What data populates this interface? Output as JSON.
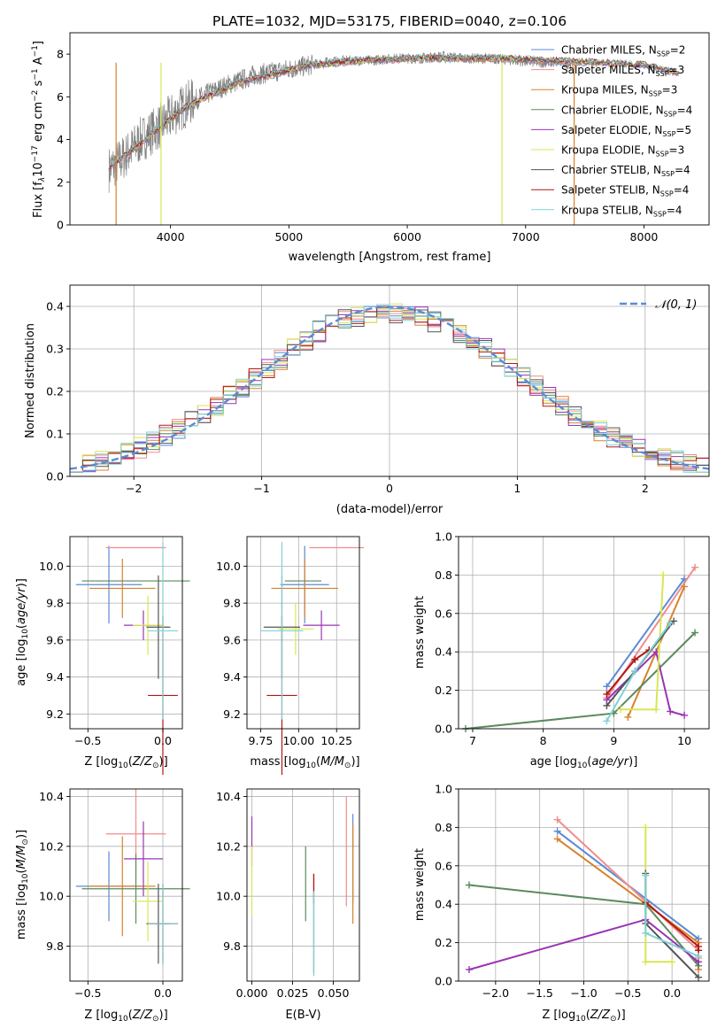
{
  "chart_data": [
    {
      "id": "spectrum",
      "type": "line",
      "title": "PLATE=1032, MJD=53175, FIBERID=0040, z=0.106",
      "xlabel": "wavelength [Angstrom, rest frame]",
      "ylabel": "Flux [fλ10⁻¹⁷ erg cm⁻² s⁻¹ A⁻¹]",
      "xlim": [
        3150,
        8550
      ],
      "ylim": [
        0,
        9
      ],
      "xticks": [
        4000,
        5000,
        6000,
        7000,
        8000
      ],
      "yticks": [
        0,
        2,
        4,
        6,
        8
      ],
      "legend_position": "upper right",
      "observed_color": "#808080",
      "observed_x": [
        3480,
        3550,
        3650,
        3750,
        3850,
        3950,
        4050,
        4150,
        4300,
        4500,
        4700,
        4900,
        5100,
        5300,
        5500,
        5700,
        5900,
        6100,
        6300,
        6500,
        6700,
        6900,
        7100,
        7300,
        7400
      ],
      "observed_y": [
        2.6,
        2.9,
        3.4,
        4.0,
        4.4,
        4.8,
        5.3,
        5.7,
        6.1,
        6.6,
        7.0,
        7.2,
        7.4,
        7.6,
        7.7,
        7.7,
        7.8,
        7.8,
        7.9,
        7.8,
        7.8,
        7.7,
        7.6,
        7.6,
        7.5
      ],
      "model_x": [
        3480,
        3700,
        3900,
        4100,
        4300,
        4600,
        4900,
        5200,
        5600,
        6000,
        6400,
        6800,
        7200,
        7600,
        8000,
        8300
      ],
      "model_y": [
        2.7,
        3.6,
        4.5,
        5.4,
        6.0,
        6.7,
        7.1,
        7.5,
        7.7,
        7.8,
        7.8,
        7.8,
        7.7,
        7.6,
        7.5,
        7.1
      ],
      "series": [
        {
          "name": "Chabrier MILES, N",
          "nssp": "2",
          "color": "#5b8bd6"
        },
        {
          "name": "Salpeter MILES, N",
          "nssp": "3",
          "color": "#f18c8c"
        },
        {
          "name": "Kroupa MILES, N",
          "nssp": "3",
          "color": "#d8822a"
        },
        {
          "name": "Chabrier ELODIE, N",
          "nssp": "4",
          "color": "#5a8a5e"
        },
        {
          "name": "Salpeter ELODIE, N",
          "nssp": "5",
          "color": "#9b33b4"
        },
        {
          "name": "Kroupa ELODIE, N",
          "nssp": "3",
          "color": "#d8e653"
        },
        {
          "name": "Chabrier STELIB, N",
          "nssp": "4",
          "color": "#555555"
        },
        {
          "name": "Salpeter STELIB, N",
          "nssp": "4",
          "color": "#b21818"
        },
        {
          "name": "Kroupa STELIB, N",
          "nssp": "4",
          "color": "#7fd2d6"
        }
      ],
      "nssp_subscript": "SSP"
    },
    {
      "id": "residuals",
      "type": "histogram",
      "xlabel": "(data-model)/error",
      "ylabel": "Normed distribution",
      "xlim": [
        -2.5,
        2.5
      ],
      "ylim": [
        0,
        0.45
      ],
      "xticks": [
        -2,
        -1,
        0,
        1,
        2
      ],
      "yticks": [
        0.0,
        0.1,
        0.2,
        0.3,
        0.4
      ],
      "legend": "𝒩(0, 1)",
      "legend_position": "upper right",
      "grid": true,
      "bin_width": 0.1,
      "hist_shape_x": [
        -2.5,
        -2.0,
        -1.5,
        -1.0,
        -0.5,
        0.0,
        0.5,
        1.0,
        1.5,
        2.0,
        2.5
      ],
      "hist_shape_y": [
        0.03,
        0.07,
        0.15,
        0.24,
        0.35,
        0.37,
        0.34,
        0.26,
        0.13,
        0.06,
        0.03
      ],
      "gaussian_mean": 0,
      "gaussian_sigma": 1
    },
    {
      "id": "z_vs_age",
      "type": "errorbar",
      "xlabel": "Z [log₁₀(Z/Z⊙)]",
      "ylabel": "age  [log₁₀(age/yr)]",
      "xlim": [
        -0.62,
        0.13
      ],
      "ylim": [
        9.12,
        10.16
      ],
      "xticks": [
        -0.5,
        0.0
      ],
      "yticks": [
        9.2,
        9.4,
        9.6,
        9.8,
        10.0
      ],
      "grid": true,
      "points": [
        {
          "series": 0,
          "x": -0.36,
          "y": 9.9,
          "xerr": 0.22,
          "yerr": 0.21
        },
        {
          "series": 1,
          "x": -0.18,
          "y": 10.1,
          "xerr": 0.2,
          "yerr": 0.0
        },
        {
          "series": 2,
          "x": -0.27,
          "y": 9.88,
          "xerr": 0.22,
          "yerr": 0.16
        },
        {
          "series": 3,
          "x": -0.18,
          "y": 9.92,
          "xerr": 0.36,
          "yerr": 0.0
        },
        {
          "series": 4,
          "x": -0.13,
          "y": 9.68,
          "xerr": 0.13,
          "yerr": 0.08
        },
        {
          "series": 5,
          "x": -0.1,
          "y": 9.68,
          "xerr": 0.1,
          "yerr": 0.16
        },
        {
          "series": 6,
          "x": -0.03,
          "y": 9.67,
          "xerr": 0.08,
          "yerr": 0.28
        },
        {
          "series": 7,
          "x": 0.0,
          "y": 9.3,
          "xerr": 0.1,
          "yerr": 0.43
        },
        {
          "series": 8,
          "x": 0.0,
          "y": 9.65,
          "xerr": 0.1,
          "yerr": 0.48
        }
      ]
    },
    {
      "id": "mass_vs_age",
      "type": "errorbar",
      "xlabel": "mass [log₁₀(M/M⊙)]",
      "xlim": [
        9.66,
        10.4
      ],
      "ylim": [
        9.12,
        10.16
      ],
      "xticks": [
        9.75,
        10.0,
        10.25
      ],
      "yticks": [
        9.2,
        9.4,
        9.6,
        9.8,
        10.0
      ],
      "grid": true,
      "points": [
        {
          "series": 0,
          "x": 10.04,
          "y": 9.9,
          "xerr": 0.16,
          "yerr": 0.21
        },
        {
          "series": 1,
          "x": 10.25,
          "y": 10.1,
          "xerr": 0.18,
          "yerr": 0.0
        },
        {
          "series": 2,
          "x": 10.04,
          "y": 9.88,
          "xerr": 0.22,
          "yerr": 0.16
        },
        {
          "series": 3,
          "x": 10.03,
          "y": 9.92,
          "xerr": 0.12,
          "yerr": 0.0
        },
        {
          "series": 4,
          "x": 10.15,
          "y": 9.68,
          "xerr": 0.12,
          "yerr": 0.08
        },
        {
          "series": 5,
          "x": 9.98,
          "y": 9.66,
          "xerr": 0.12,
          "yerr": 0.14
        },
        {
          "series": 6,
          "x": 9.89,
          "y": 9.67,
          "xerr": 0.12,
          "yerr": 0.28
        },
        {
          "series": 7,
          "x": 9.89,
          "y": 9.3,
          "xerr": 0.1,
          "yerr": 0.43
        },
        {
          "series": 8,
          "x": 9.89,
          "y": 9.65,
          "xerr": 0.14,
          "yerr": 0.48
        }
      ]
    },
    {
      "id": "age_vs_weight",
      "type": "line",
      "xlabel": "age  [log₁₀(age/yr)]",
      "ylabel": "mass weight",
      "xlim": [
        6.8,
        10.35
      ],
      "ylim": [
        0,
        1
      ],
      "xticks": [
        7,
        8,
        9,
        10
      ],
      "yticks": [
        0.0,
        0.2,
        0.4,
        0.6,
        0.8,
        1.0
      ],
      "grid": true,
      "series": [
        {
          "series": 0,
          "x": [
            8.9,
            10.0
          ],
          "y": [
            0.22,
            0.78
          ]
        },
        {
          "series": 1,
          "x": [
            8.9,
            10.15
          ],
          "y": [
            0.16,
            0.84
          ]
        },
        {
          "series": 2,
          "x": [
            9.2,
            10.0
          ],
          "y": [
            0.06,
            0.74
          ]
        },
        {
          "series": 3,
          "x": [
            6.9,
            9.0,
            10.15
          ],
          "y": [
            0.0,
            0.08,
            0.5
          ]
        },
        {
          "series": 4,
          "x": [
            8.9,
            9.6,
            9.8,
            10.0
          ],
          "y": [
            0.15,
            0.4,
            0.09,
            0.07
          ]
        },
        {
          "series": 5,
          "x": [
            9.1,
            9.6,
            9.7
          ],
          "y": [
            0.1,
            0.1,
            0.8
          ]
        },
        {
          "series": 6,
          "x": [
            8.9,
            9.3,
            9.85
          ],
          "y": [
            0.12,
            0.3,
            0.56
          ]
        },
        {
          "series": 7,
          "x": [
            8.9,
            9.3,
            9.5
          ],
          "y": [
            0.18,
            0.36,
            0.41
          ]
        },
        {
          "series": 8,
          "x": [
            8.9,
            9.3,
            9.8
          ],
          "y": [
            0.04,
            0.3,
            0.55
          ]
        }
      ]
    },
    {
      "id": "z_vs_mass",
      "type": "errorbar",
      "xlabel": "Z [log₁₀(Z/Z⊙)]",
      "ylabel": "mass [log₁₀(M/M⊙)]",
      "xlim": [
        -0.62,
        0.13
      ],
      "ylim": [
        9.66,
        10.43
      ],
      "xticks": [
        -0.5,
        0.0
      ],
      "yticks": [
        9.8,
        10.0,
        10.2,
        10.4
      ],
      "grid": true,
      "points": [
        {
          "series": 0,
          "x": -0.36,
          "y": 10.04,
          "xerr": 0.22,
          "yerr": 0.14
        },
        {
          "series": 1,
          "x": -0.18,
          "y": 10.25,
          "xerr": 0.2,
          "yerr": 0.18
        },
        {
          "series": 2,
          "x": -0.27,
          "y": 10.04,
          "xerr": 0.22,
          "yerr": 0.2
        },
        {
          "series": 3,
          "x": -0.18,
          "y": 10.03,
          "xerr": 0.36,
          "yerr": 0.14
        },
        {
          "series": 4,
          "x": -0.13,
          "y": 10.15,
          "xerr": 0.13,
          "yerr": 0.15
        },
        {
          "series": 5,
          "x": -0.1,
          "y": 9.98,
          "xerr": 0.1,
          "yerr": 0.16
        },
        {
          "series": 6,
          "x": -0.03,
          "y": 9.89,
          "xerr": 0.08,
          "yerr": 0.16
        },
        {
          "series": 7,
          "x": 0.0,
          "y": 9.89,
          "xerr": 0.1,
          "yerr": 0.16
        },
        {
          "series": 8,
          "x": 0.0,
          "y": 9.89,
          "xerr": 0.1,
          "yerr": 0.16
        }
      ]
    },
    {
      "id": "ebv_vs_mass",
      "type": "errorbar",
      "xlabel": "E(B-V)",
      "xlim": [
        -0.003,
        0.066
      ],
      "ylim": [
        9.66,
        10.43
      ],
      "xticks": [
        0.0,
        0.025,
        0.05
      ],
      "xticklabels": [
        "0.000",
        "0.025",
        "0.050"
      ],
      "yticks": [
        9.8,
        10.0,
        10.2,
        10.4
      ],
      "grid": true,
      "points": [
        {
          "series": 0,
          "x": 0.062,
          "y": 10.15,
          "xerr": 0,
          "yerr": 0.18
        },
        {
          "series": 1,
          "x": 0.058,
          "y": 10.18,
          "xerr": 0,
          "yerr": 0.22
        },
        {
          "series": 2,
          "x": 0.062,
          "y": 10.09,
          "xerr": 0,
          "yerr": 0.2
        },
        {
          "series": 3,
          "x": 0.033,
          "y": 10.05,
          "xerr": 0,
          "yerr": 0.15
        },
        {
          "series": 4,
          "x": 0.0,
          "y": 10.22,
          "xerr": 0,
          "yerr": 0.1
        },
        {
          "series": 5,
          "x": 0.0,
          "y": 10.06,
          "xerr": 0,
          "yerr": 0.14
        },
        {
          "series": 6,
          "x": 0.038,
          "y": 9.89,
          "xerr": 0,
          "yerr": 0.2
        },
        {
          "series": 7,
          "x": 0.038,
          "y": 10.03,
          "xerr": 0,
          "yerr": 0.06
        },
        {
          "series": 8,
          "x": 0.038,
          "y": 9.85,
          "xerr": 0,
          "yerr": 0.17
        }
      ]
    },
    {
      "id": "z_vs_weight",
      "type": "line",
      "xlabel": "Z [log₁₀(Z/Z⊙)]",
      "ylabel": "mass weight",
      "xlim": [
        -2.42,
        0.42
      ],
      "ylim": [
        0,
        1
      ],
      "xticks": [
        -2.0,
        -1.5,
        -1.0,
        -0.5,
        0.0
      ],
      "xticklabels": [
        "−2.0",
        "−1.5",
        "−1.0",
        "−0.5",
        "0.0"
      ],
      "yticks": [
        0.0,
        0.2,
        0.4,
        0.6,
        0.8,
        1.0
      ],
      "grid": true,
      "series": [
        {
          "series": 0,
          "x": [
            -1.3,
            0.3,
            0.3
          ],
          "y": [
            0.78,
            0.22,
            0.1
          ]
        },
        {
          "series": 1,
          "x": [
            -1.3,
            0.3,
            0.3
          ],
          "y": [
            0.84,
            0.16,
            0.12
          ]
        },
        {
          "series": 2,
          "x": [
            -1.3,
            0.3,
            0.3
          ],
          "y": [
            0.74,
            0.2,
            0.06
          ]
        },
        {
          "series": 3,
          "x": [
            -2.3,
            -0.3,
            0.3
          ],
          "y": [
            0.5,
            0.4,
            0.08
          ]
        },
        {
          "series": 4,
          "x": [
            -2.3,
            -0.3,
            0.3
          ],
          "y": [
            0.06,
            0.32,
            0.1
          ]
        },
        {
          "series": 5,
          "x": [
            -0.3,
            -0.3,
            0.0
          ],
          "y": [
            0.8,
            0.1,
            0.1
          ]
        },
        {
          "series": 6,
          "x": [
            -0.3,
            -0.3,
            0.3
          ],
          "y": [
            0.56,
            0.3,
            0.02
          ]
        },
        {
          "series": 7,
          "x": [
            -0.3,
            0.3,
            0.3
          ],
          "y": [
            0.41,
            0.18,
            0.16
          ]
        },
        {
          "series": 8,
          "x": [
            -0.3,
            -0.3,
            0.3
          ],
          "y": [
            0.55,
            0.25,
            0.13
          ]
        }
      ]
    }
  ]
}
